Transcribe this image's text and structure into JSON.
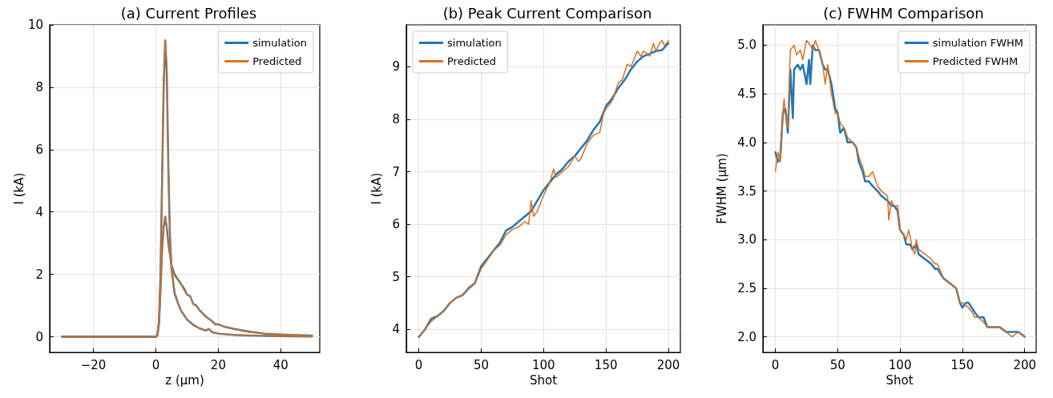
{
  "chart_data": [
    {
      "type": "line",
      "title": "(a) Current Profiles",
      "xlabel": "z (μm)",
      "ylabel": "I (kA)",
      "xlim": [
        -34,
        52.5
      ],
      "ylim": [
        -0.5,
        10
      ],
      "xticks": [
        -20,
        0,
        20,
        40
      ],
      "yticks": [
        0,
        2,
        4,
        6,
        8,
        10
      ],
      "grid": true,
      "legend": "top right",
      "marker": "none",
      "line_style": "solid",
      "series": [
        {
          "name": "simulation",
          "color": "#1f77b4",
          "x": [
            -30,
            0,
            0.5,
            1,
            1.5,
            2,
            2.5,
            3,
            3.5,
            4,
            4.5,
            5,
            6,
            7,
            8,
            10,
            12,
            14,
            16,
            17,
            18,
            20,
            25,
            30,
            40,
            50
          ],
          "values": [
            0,
            0,
            0.05,
            0.5,
            2,
            5,
            8,
            9.5,
            8.5,
            5.5,
            3.3,
            2.2,
            1.4,
            1.1,
            0.85,
            0.55,
            0.38,
            0.27,
            0.2,
            0.25,
            0.15,
            0.1,
            0.06,
            0.04,
            0.02,
            0.01
          ]
        },
        {
          "name": "Predicted",
          "color": "#dd6e1c",
          "x": [
            -30,
            0,
            0.5,
            1,
            1.5,
            2,
            2.5,
            3,
            3.5,
            4,
            4.5,
            5,
            6,
            7,
            8,
            10,
            12,
            14,
            16,
            17,
            18,
            20,
            25,
            30,
            40,
            50
          ],
          "values": [
            0,
            0,
            0.05,
            0.5,
            2,
            5,
            8.1,
            9.5,
            8.6,
            5.6,
            3.3,
            2.2,
            1.45,
            1.1,
            0.85,
            0.55,
            0.4,
            0.27,
            0.2,
            0.26,
            0.15,
            0.1,
            0.06,
            0.04,
            0.02,
            0.01
          ]
        },
        {
          "color": "#1f77b4",
          "x": [
            -30,
            0,
            0.5,
            1,
            1.5,
            2,
            2.5,
            3,
            3.5,
            4,
            5,
            6,
            7,
            8,
            9,
            10,
            11,
            12,
            13,
            14,
            16,
            18,
            19,
            20,
            22,
            25,
            30,
            35,
            40,
            45,
            50
          ],
          "values": [
            0,
            0,
            0.05,
            0.4,
            1.5,
            2.8,
            3.5,
            3.85,
            3.5,
            3,
            2.3,
            2,
            1.85,
            1.7,
            1.55,
            1.35,
            1.3,
            1.05,
            1,
            0.85,
            0.65,
            0.5,
            0.4,
            0.4,
            0.32,
            0.25,
            0.16,
            0.1,
            0.07,
            0.05,
            0.04
          ]
        },
        {
          "color": "#dd6e1c",
          "x": [
            -30,
            0,
            0.5,
            1,
            1.5,
            2,
            2.5,
            3,
            3.5,
            4,
            5,
            6,
            7,
            8,
            9,
            10,
            11,
            12,
            13,
            14,
            16,
            18,
            19,
            20,
            22,
            25,
            30,
            35,
            40,
            45,
            50
          ],
          "values": [
            0,
            0,
            0.05,
            0.4,
            1.5,
            2.8,
            3.5,
            3.85,
            3.5,
            3,
            2.3,
            1.95,
            1.85,
            1.7,
            1.5,
            1.35,
            1.3,
            1.05,
            1,
            0.85,
            0.65,
            0.5,
            0.42,
            0.4,
            0.32,
            0.24,
            0.15,
            0.1,
            0.07,
            0.05,
            0.03
          ]
        }
      ]
    },
    {
      "type": "line",
      "title": "(b) Peak Current Comparison",
      "xlabel": "Shot",
      "ylabel": "I (kA)",
      "xlim": [
        -10,
        209.6
      ],
      "ylim": [
        3.56,
        9.8
      ],
      "xticks": [
        0,
        50,
        100,
        150,
        200
      ],
      "yticks": [
        4,
        5,
        6,
        7,
        8,
        9
      ],
      "grid": true,
      "legend": "top left",
      "marker": "none",
      "line_style": "solid",
      "series": [
        {
          "name": "simulation",
          "color": "#1f77b4",
          "x": [
            0,
            5,
            10,
            15,
            20,
            25,
            30,
            35,
            40,
            45,
            50,
            55,
            60,
            65,
            70,
            75,
            80,
            85,
            90,
            95,
            100,
            105,
            110,
            115,
            120,
            125,
            130,
            135,
            140,
            145,
            150,
            155,
            160,
            165,
            170,
            175,
            180,
            185,
            190,
            195,
            200
          ],
          "values": [
            3.85,
            4,
            4.2,
            4.25,
            4.35,
            4.5,
            4.6,
            4.65,
            4.78,
            4.88,
            5.2,
            5.35,
            5.5,
            5.65,
            5.88,
            5.95,
            6.05,
            6.15,
            6.25,
            6.45,
            6.65,
            6.8,
            6.95,
            7.05,
            7.2,
            7.3,
            7.45,
            7.6,
            7.8,
            7.95,
            8.25,
            8.4,
            8.6,
            8.75,
            8.95,
            9.1,
            9.2,
            9.25,
            9.3,
            9.32,
            9.45
          ]
        },
        {
          "name": "Predicted",
          "color": "#dd6e1c",
          "x": [
            0,
            5,
            10,
            15,
            20,
            25,
            30,
            35,
            40,
            45,
            50,
            55,
            60,
            65,
            70,
            75,
            80,
            85,
            88,
            90,
            92,
            95,
            100,
            105,
            108,
            110,
            115,
            120,
            125,
            128,
            130,
            135,
            140,
            145,
            148,
            150,
            155,
            160,
            163,
            167,
            170,
            175,
            178,
            180,
            183,
            185,
            188,
            190,
            193,
            195,
            197,
            200
          ],
          "values": [
            3.85,
            4,
            4.15,
            4.25,
            4.35,
            4.5,
            4.6,
            4.65,
            4.8,
            4.88,
            5.15,
            5.32,
            5.5,
            5.6,
            5.8,
            5.9,
            5.95,
            6.05,
            6,
            6.45,
            6.15,
            6.25,
            6.55,
            6.8,
            7.05,
            6.9,
            7,
            7.1,
            7.3,
            7.2,
            7.25,
            7.55,
            7.7,
            7.75,
            8.1,
            8.2,
            8.35,
            8.7,
            8.75,
            9.05,
            9,
            9.3,
            9.2,
            9.3,
            9.25,
            9.2,
            9.45,
            9.3,
            9.45,
            9.5,
            9.4,
            9.5
          ]
        }
      ]
    },
    {
      "type": "line",
      "title": "(c) FWHM Comparison",
      "xlabel": "Shot",
      "ylabel": "FWHM (μm)",
      "xlim": [
        -10,
        209.2
      ],
      "ylim": [
        1.84,
        5.21
      ],
      "xticks": [
        0,
        50,
        100,
        150,
        200
      ],
      "yticks": [
        {
          "value": 2,
          "label": "2.0"
        },
        2.5,
        {
          "value": 3,
          "label": "3.0"
        },
        3.5,
        {
          "value": 4,
          "label": "4.0"
        },
        4.5,
        {
          "value": 5,
          "label": "5.0"
        }
      ],
      "grid": true,
      "legend": "top right",
      "marker": "none",
      "line_style": "solid",
      "series": [
        {
          "name": "simulation FWHM",
          "color": "#1f77b4",
          "x": [
            0,
            2,
            4,
            6,
            8,
            10,
            12,
            14,
            15,
            18,
            20,
            22,
            25,
            27,
            28,
            30,
            32,
            35,
            38,
            40,
            42,
            45,
            48,
            50,
            52,
            55,
            58,
            62,
            65,
            67,
            70,
            72,
            75,
            78,
            82,
            85,
            90,
            93,
            95,
            98,
            100,
            103,
            105,
            108,
            110,
            113,
            115,
            120,
            125,
            128,
            130,
            135,
            140,
            145,
            148,
            150,
            153,
            155,
            160,
            163,
            167,
            170,
            175,
            180,
            185,
            190,
            195,
            200
          ],
          "values": [
            3.9,
            3.8,
            3.85,
            4.3,
            4.35,
            4.1,
            4.75,
            4.25,
            4.75,
            4.8,
            4.75,
            4.8,
            4.6,
            4.85,
            4.6,
            5,
            4.95,
            4.95,
            4.8,
            4.75,
            4.75,
            4.6,
            4.35,
            4.3,
            4.1,
            4.15,
            4,
            4,
            3.95,
            3.8,
            3.7,
            3.6,
            3.6,
            3.55,
            3.5,
            3.45,
            3.4,
            3.35,
            3.35,
            3.3,
            3.1,
            3.05,
            2.95,
            2.95,
            2.9,
            2.95,
            2.85,
            2.8,
            2.75,
            2.7,
            2.7,
            2.6,
            2.55,
            2.5,
            2.35,
            2.3,
            2.35,
            2.35,
            2.25,
            2.2,
            2.2,
            2.1,
            2.1,
            2.1,
            2.05,
            2.05,
            2.05,
            2
          ]
        },
        {
          "name": "Predicted FWHM",
          "color": "#dd6e1c",
          "x": [
            0,
            2,
            4,
            6,
            7,
            8,
            10,
            12,
            15,
            17,
            20,
            22,
            25,
            28,
            30,
            32,
            35,
            38,
            40,
            42,
            45,
            48,
            50,
            52,
            55,
            58,
            62,
            65,
            67,
            70,
            72,
            75,
            78,
            82,
            85,
            90,
            91,
            93,
            95,
            98,
            100,
            103,
            105,
            107,
            110,
            112,
            113,
            115,
            120,
            125,
            128,
            130,
            135,
            140,
            145,
            148,
            150,
            155,
            158,
            160,
            163,
            167,
            170,
            175,
            180,
            185,
            190,
            195,
            200
          ],
          "values": [
            3.7,
            3.9,
            3.8,
            4.3,
            4.45,
            4.3,
            4.15,
            4.95,
            5,
            4.9,
            4.95,
            4.85,
            5.05,
            5,
            4.95,
            5.05,
            4.95,
            4.8,
            4.6,
            4.8,
            4.5,
            4.3,
            4.3,
            4.2,
            4.15,
            4.05,
            4,
            3.95,
            3.85,
            3.75,
            3.65,
            3.65,
            3.7,
            3.55,
            3.5,
            3.45,
            3.2,
            3.4,
            3.35,
            3.35,
            3.1,
            3.05,
            3,
            3.1,
            2.9,
            2.85,
            3,
            2.9,
            2.85,
            2.8,
            2.75,
            2.75,
            2.6,
            2.55,
            2.5,
            2.35,
            2.35,
            2.3,
            2.25,
            2.2,
            2.2,
            2.15,
            2.1,
            2.1,
            2.1,
            2.05,
            2,
            2.05,
            2
          ]
        }
      ]
    }
  ]
}
